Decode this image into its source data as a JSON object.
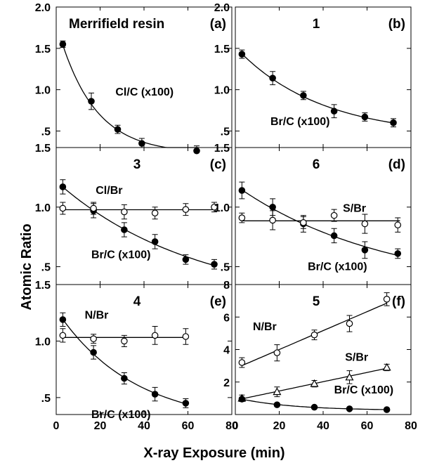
{
  "chart_data": {
    "type": "scatter",
    "ylabel": "Atomic Ratio",
    "xlabel": "X-ray Exposure (min)",
    "xlim": [
      0,
      80
    ],
    "x_ticks": [
      "0",
      "20",
      "40",
      "60",
      "80"
    ],
    "panels": [
      {
        "id": "a",
        "letter": "(a)",
        "title": "Merrifield resin",
        "ylim": [
          0.3,
          2.0
        ],
        "y_ticks": [
          {
            "v": 0.5,
            "label": ".5"
          },
          {
            "v": 1.0,
            "label": "1.0"
          },
          {
            "v": 1.5,
            "label": "1.5"
          },
          {
            "v": 2.0,
            "label": "2.0"
          }
        ],
        "series": [
          {
            "name": "Cl/C (x100)",
            "label_at": [
              27,
              0.93
            ],
            "marker": "filled-circle",
            "fit": "exp",
            "fit_range": [
              3,
              65
            ],
            "points": [
              {
                "x": 3,
                "y": 1.55,
                "e": 0.04
              },
              {
                "x": 16,
                "y": 0.86,
                "e": 0.1
              },
              {
                "x": 28,
                "y": 0.52,
                "e": 0.05
              },
              {
                "x": 39,
                "y": 0.35,
                "e": 0.06
              },
              {
                "x": 64,
                "y": 0.26,
                "e": 0.06
              }
            ]
          }
        ]
      },
      {
        "id": "b",
        "letter": "(b)",
        "title": "1",
        "ylim": [
          0.3,
          2.0
        ],
        "y_ticks": [
          {
            "v": 0.5,
            "label": ".5"
          },
          {
            "v": 1.0,
            "label": "1.0"
          },
          {
            "v": 1.5,
            "label": "1.5"
          },
          {
            "v": 2.0,
            "label": "2.0"
          }
        ],
        "series": [
          {
            "name": "Br/C (x100)",
            "label_at": [
              16,
              0.57
            ],
            "marker": "filled-circle",
            "fit": "exp",
            "fit_range": [
              3,
              72
            ],
            "points": [
              {
                "x": 3,
                "y": 1.43,
                "e": 0.05
              },
              {
                "x": 17,
                "y": 1.14,
                "e": 0.08
              },
              {
                "x": 31,
                "y": 0.93,
                "e": 0.05
              },
              {
                "x": 45,
                "y": 0.74,
                "e": 0.08
              },
              {
                "x": 59,
                "y": 0.67,
                "e": 0.05
              },
              {
                "x": 72,
                "y": 0.6,
                "e": 0.05
              }
            ]
          }
        ]
      },
      {
        "id": "c",
        "letter": "(c)",
        "title": "3",
        "ylim": [
          0.35,
          1.5
        ],
        "y_ticks": [
          {
            "v": 0.5,
            "label": ".5"
          },
          {
            "v": 1.0,
            "label": "1.0"
          },
          {
            "v": 1.5,
            "label": "1.5"
          }
        ],
        "series": [
          {
            "name": "Br/C (x100)",
            "label_at": [
              16,
              0.57
            ],
            "marker": "filled-circle",
            "fit": "exp",
            "fit_range": [
              3,
              72
            ],
            "points": [
              {
                "x": 3,
                "y": 1.17,
                "e": 0.06
              },
              {
                "x": 17,
                "y": 0.97,
                "e": 0.06
              },
              {
                "x": 31,
                "y": 0.81,
                "e": 0.06
              },
              {
                "x": 45,
                "y": 0.71,
                "e": 0.06
              },
              {
                "x": 59,
                "y": 0.56,
                "e": 0.04
              },
              {
                "x": 72,
                "y": 0.52,
                "e": 0.04
              }
            ]
          },
          {
            "name": "Cl/Br",
            "label_at": [
              18,
              1.11
            ],
            "marker": "open-circle",
            "fit": "flat",
            "fit_range": [
              3,
              72
            ],
            "points": [
              {
                "x": 3,
                "y": 0.99,
                "e": 0.05
              },
              {
                "x": 17,
                "y": 0.99,
                "e": 0.05
              },
              {
                "x": 31,
                "y": 0.96,
                "e": 0.06
              },
              {
                "x": 45,
                "y": 0.95,
                "e": 0.05
              },
              {
                "x": 59,
                "y": 0.98,
                "e": 0.05
              },
              {
                "x": 72,
                "y": 1.0,
                "e": 0.04
              }
            ]
          }
        ]
      },
      {
        "id": "d",
        "letter": "(d)",
        "title": "6",
        "ylim": [
          0.35,
          1.5
        ],
        "y_ticks": [
          {
            "v": 0.5,
            "label": ".5"
          },
          {
            "v": 1.0,
            "label": "1.0"
          },
          {
            "v": 1.5,
            "label": "1.5"
          }
        ],
        "series": [
          {
            "name": "Br/C (x100)",
            "label_at": [
              33,
              0.47
            ],
            "marker": "filled-circle",
            "fit": "exp",
            "fit_range": [
              3,
              75
            ],
            "points": [
              {
                "x": 3,
                "y": 1.14,
                "e": 0.07
              },
              {
                "x": 17,
                "y": 1.0,
                "e": 0.07
              },
              {
                "x": 31,
                "y": 0.86,
                "e": 0.07
              },
              {
                "x": 45,
                "y": 0.76,
                "e": 0.06
              },
              {
                "x": 59,
                "y": 0.64,
                "e": 0.07
              },
              {
                "x": 74,
                "y": 0.61,
                "e": 0.04
              }
            ]
          },
          {
            "name": "S/Br",
            "label_at": [
              49,
              0.96
            ],
            "marker": "open-circle",
            "fit": "flat",
            "fit_range": [
              3,
              75
            ],
            "points": [
              {
                "x": 3,
                "y": 0.91,
                "e": 0.04
              },
              {
                "x": 17,
                "y": 0.89,
                "e": 0.08
              },
              {
                "x": 31,
                "y": 0.87,
                "e": 0.05
              },
              {
                "x": 45,
                "y": 0.93,
                "e": 0.05
              },
              {
                "x": 59,
                "y": 0.86,
                "e": 0.08
              },
              {
                "x": 74,
                "y": 0.85,
                "e": 0.06
              }
            ]
          }
        ]
      },
      {
        "id": "e",
        "letter": "(e)",
        "title": "4",
        "ylim": [
          0.35,
          1.5
        ],
        "y_ticks": [
          {
            "v": 0.5,
            "label": ".5"
          },
          {
            "v": 1.0,
            "label": "1.0"
          },
          {
            "v": 1.5,
            "label": "1.5"
          }
        ],
        "series": [
          {
            "name": "Br/C (x100)",
            "label_at": [
              16,
              0.32
            ],
            "marker": "filled-circle",
            "fit": "exp",
            "fit_range": [
              3,
              59
            ],
            "points": [
              {
                "x": 3,
                "y": 1.19,
                "e": 0.06
              },
              {
                "x": 17,
                "y": 0.9,
                "e": 0.06
              },
              {
                "x": 31,
                "y": 0.67,
                "e": 0.05
              },
              {
                "x": 45,
                "y": 0.53,
                "e": 0.06
              },
              {
                "x": 59,
                "y": 0.45,
                "e": 0.04
              }
            ]
          },
          {
            "name": "N/Br",
            "label_at": [
              13,
              1.2
            ],
            "marker": "open-circle",
            "fit": "flat",
            "fit_range": [
              3,
              59
            ],
            "points": [
              {
                "x": 3,
                "y": 1.05,
                "e": 0.06
              },
              {
                "x": 17,
                "y": 1.02,
                "e": 0.04
              },
              {
                "x": 31,
                "y": 1.0,
                "e": 0.05
              },
              {
                "x": 45,
                "y": 1.05,
                "e": 0.08
              },
              {
                "x": 59,
                "y": 1.04,
                "e": 0.07
              }
            ]
          }
        ]
      },
      {
        "id": "f",
        "letter": "(f)",
        "title": "5",
        "ylim": [
          0,
          8
        ],
        "y_ticks": [
          {
            "v": 2,
            "label": "2"
          },
          {
            "v": 4,
            "label": "4"
          },
          {
            "v": 6,
            "label": "6"
          },
          {
            "v": 8,
            "label": "8"
          }
        ],
        "series": [
          {
            "name": "N/Br",
            "label_at": [
              8,
              5.2
            ],
            "marker": "open-circle",
            "fit": "linear",
            "fit_range": [
              3,
              69
            ],
            "points": [
              {
                "x": 3,
                "y": 3.2,
                "e": 0.3
              },
              {
                "x": 19,
                "y": 3.8,
                "e": 0.5
              },
              {
                "x": 36,
                "y": 4.9,
                "e": 0.3
              },
              {
                "x": 52,
                "y": 5.6,
                "e": 0.5
              },
              {
                "x": 69,
                "y": 7.1,
                "e": 0.4
              }
            ]
          },
          {
            "name": "S/Br",
            "label_at": [
              50,
              3.3
            ],
            "marker": "open-triangle",
            "fit": "linear",
            "fit_range": [
              3,
              69
            ],
            "points": [
              {
                "x": 3,
                "y": 1.0,
                "e": 0.2
              },
              {
                "x": 19,
                "y": 1.4,
                "e": 0.3
              },
              {
                "x": 36,
                "y": 1.9,
                "e": 0.2
              },
              {
                "x": 52,
                "y": 2.3,
                "e": 0.4
              },
              {
                "x": 69,
                "y": 2.9,
                "e": 0.2
              }
            ]
          },
          {
            "name": "Br/C (x100)",
            "label_at": [
              45,
              1.3
            ],
            "marker": "filled-circle",
            "fit": "exp",
            "fit_range": [
              3,
              69
            ],
            "points": [
              {
                "x": 3,
                "y": 0.95,
                "e": 0.1
              },
              {
                "x": 19,
                "y": 0.6,
                "e": 0.05
              },
              {
                "x": 36,
                "y": 0.45,
                "e": 0.05
              },
              {
                "x": 52,
                "y": 0.35,
                "e": 0.05
              },
              {
                "x": 69,
                "y": 0.3,
                "e": 0.05
              }
            ]
          }
        ]
      }
    ]
  }
}
